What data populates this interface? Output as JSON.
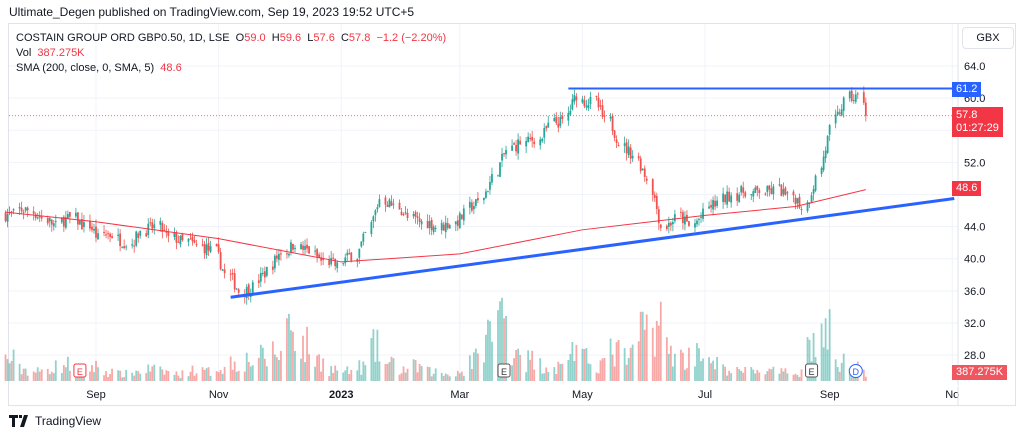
{
  "publisher_line": "Ultimate_Degen published on TradingView.com, Sep 19, 2023 19:52 UTC+5",
  "legend": {
    "symbol": "COSTAIN GROUP ORD GBP0.50, 1D, LSE",
    "o_label": "O",
    "o": "59.0",
    "h_label": "H",
    "h": "59.6",
    "l_label": "L",
    "l": "57.6",
    "c_label": "C",
    "c": "57.8",
    "change": "−1.2 (−2.20%)",
    "vol_label": "Vol",
    "vol": "387.275K",
    "sma_label": "SMA (200, close, 0, SMA, 5)",
    "sma": "48.6"
  },
  "currency": "GBX",
  "price_tags": {
    "resistance": "61.2",
    "last": "57.8",
    "countdown": "01:27:29",
    "sma": "48.6",
    "volume": "387.275K"
  },
  "footer": {
    "brand": "TradingView"
  },
  "events": [
    {
      "label": "E",
      "date": "2022-08-24"
    },
    {
      "label": "E",
      "date": "2023-03-23"
    },
    {
      "label": "E",
      "date": "2023-08-23"
    },
    {
      "label": "D",
      "date": "2023-09-14"
    }
  ],
  "colors": {
    "up": "#26a69a",
    "down": "#ef5350",
    "sma": "#f23645",
    "trendline": "#2962ff"
  },
  "chart_data": {
    "type": "candlestick",
    "title": "COSTAIN GROUP ORD GBP0.50, 1D, LSE",
    "start_week": "2022-07-18",
    "weekly_close": [
      45.5,
      46,
      45,
      44,
      45,
      44,
      42.5,
      43,
      42,
      43.5,
      44,
      42.5,
      42,
      41.5,
      41,
      38,
      36,
      36.5,
      38.5,
      41,
      42,
      41,
      39.5,
      39,
      40.5,
      43,
      47.5,
      46.5,
      45,
      44.5,
      44,
      44.5,
      45.5,
      47,
      50,
      53.5,
      54.5,
      55,
      56.5,
      57,
      60.5,
      59.5,
      57,
      54.5,
      53,
      50,
      44,
      45,
      44,
      45.5,
      47,
      48,
      48.5,
      48.5,
      48.5,
      47.5,
      46.5,
      50,
      56,
      59.5,
      60,
      57.8
    ],
    "weekly_volume_k": [
      900,
      500,
      400,
      600,
      700,
      500,
      600,
      400,
      300,
      400,
      500,
      400,
      300,
      500,
      400,
      600,
      800,
      900,
      1000,
      1200,
      2500,
      1500,
      900,
      500,
      400,
      600,
      1400,
      700,
      500,
      600,
      400,
      300,
      400,
      900,
      2000,
      2800,
      1500,
      900,
      700,
      600,
      1400,
      900,
      800,
      1200,
      1000,
      2200,
      2600,
      1300,
      1000,
      1500,
      700,
      500,
      400,
      500,
      400,
      350,
      400,
      1600,
      2000,
      800,
      900,
      387
    ],
    "sma200": {
      "dates": [
        "2022-07-18",
        "2022-09-01",
        "2022-11-01",
        "2023-01-01",
        "2023-03-01",
        "2023-05-01",
        "2023-07-01",
        "2023-08-15",
        "2023-09-19"
      ],
      "values": [
        45.8,
        44.6,
        42.5,
        39.6,
        40.6,
        43.6,
        45.4,
        46.5,
        48.6
      ]
    },
    "y_ticks": [
      "64.0",
      "60.0",
      "52.0",
      "44.0",
      "40.0",
      "36.0",
      "32.0",
      "28.0"
    ],
    "x_ticks": [
      "Sep",
      "Nov",
      "2023",
      "Mar",
      "May",
      "Jul",
      "Sep",
      "No"
    ],
    "x_tick_dates": [
      "2022-09-01",
      "2022-11-01",
      "2023-01-01",
      "2023-03-01",
      "2023-05-01",
      "2023-07-01",
      "2023-09-01",
      "2023-11-01"
    ],
    "ylim": [
      26,
      66
    ],
    "resistance_line": {
      "price": 61.2,
      "from": "2023-04-24"
    },
    "support_line": {
      "from": {
        "date": "2022-11-07",
        "price": 35.2
      },
      "to": {
        "date": "2023-11-02",
        "price": 47.5
      }
    },
    "last_price": 57.8
  }
}
